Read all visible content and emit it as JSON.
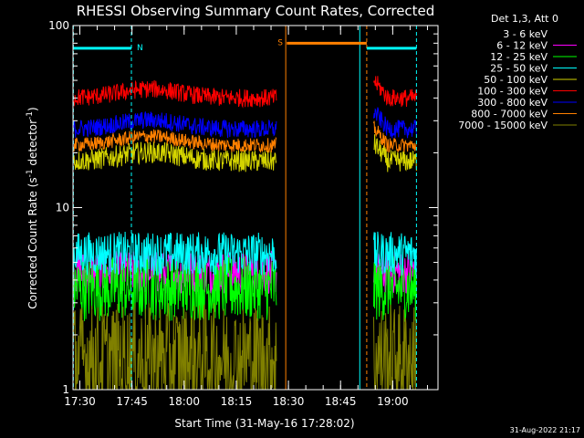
{
  "chart_data": {
    "type": "line",
    "title": "RHESSI Observing Summary Count Rates, Corrected",
    "xlabel": "Start Time (31-May-16 17:28:02)",
    "ylabel_prefix": "Corrected Count Rate (s",
    "ylabel_exp1": "-1",
    "ylabel_mid": " detector",
    "ylabel_exp2": "-1",
    "ylabel_suffix": ")",
    "x_ticks": [
      "17:30",
      "17:45",
      "18:00",
      "18:15",
      "18:30",
      "18:45",
      "19:00"
    ],
    "x_tick_minutes": [
      1.97,
      16.97,
      31.97,
      46.97,
      61.97,
      76.97,
      91.97
    ],
    "xlim_minutes": [
      0,
      105
    ],
    "y_scale": "log",
    "ylim": [
      1,
      100
    ],
    "y_ticks": [
      "1",
      "10",
      "100"
    ],
    "y_tick_values": [
      1,
      10,
      100
    ],
    "legend": {
      "header": "Det 1,3, Att 0",
      "placement": "right",
      "entries": [
        {
          "label": "3 - 6 keV",
          "color": "#000000"
        },
        {
          "label": "6 - 12 keV",
          "color": "#ff00ff"
        },
        {
          "label": "12 - 25 keV",
          "color": "#00ff00"
        },
        {
          "label": "25 - 50 keV",
          "color": "#00ffff"
        },
        {
          "label": "50 - 100 keV",
          "color": "#d4d400"
        },
        {
          "label": "100 - 300 keV",
          "color": "#ff0000"
        },
        {
          "label": "300 - 800 keV",
          "color": "#0000ff"
        },
        {
          "label": "800 - 7000 keV",
          "color": "#ff8000"
        },
        {
          "label": "7000 - 15000 keV",
          "color": "#808000"
        }
      ]
    },
    "flags": [
      {
        "label": "N",
        "color": "#00ffff",
        "start": 0,
        "end": 16.8,
        "level": 75
      },
      {
        "label": "S",
        "color": "#ff8000",
        "start": 61.5,
        "end": 84.5,
        "level": 80
      },
      {
        "label": "",
        "color": "#00ffff",
        "start": 84.5,
        "end": 98.8,
        "level": 75
      }
    ],
    "vlines": [
      {
        "x": 0.1,
        "color": "#00ffff",
        "style": "dashed"
      },
      {
        "x": 16.8,
        "color": "#00ffff",
        "style": "dashed"
      },
      {
        "x": 61.2,
        "color": "#ff8000",
        "style": "solid"
      },
      {
        "x": 82.5,
        "color": "#00ffff",
        "style": "solid"
      },
      {
        "x": 84.5,
        "color": "#ff8000",
        "style": "dashed"
      },
      {
        "x": 98.8,
        "color": "#00ffff",
        "style": "dashed"
      }
    ],
    "segments": [
      {
        "start": 0,
        "end": 58.5
      },
      {
        "start": 86.5,
        "end": 98.8
      }
    ],
    "series": [
      {
        "name": "3 - 6 keV",
        "color": "#000000",
        "base": 1.6,
        "noise": 0.3
      },
      {
        "name": "6 - 12 keV",
        "color": "#ff00ff",
        "base": 4.4,
        "noise": 0.12
      },
      {
        "name": "12 - 25 keV",
        "color": "#00ff00",
        "base": 3.6,
        "noise": 0.18
      },
      {
        "name": "25 - 50 keV",
        "color": "#00ffff",
        "base": 5.6,
        "noise": 0.12
      },
      {
        "name": "50 - 100 keV",
        "color": "#d4d400",
        "base": 18,
        "noise": 0.06
      },
      {
        "name": "100 - 300 keV",
        "color": "#ff0000",
        "base": 40,
        "noise": 0.05
      },
      {
        "name": "300 - 800 keV",
        "color": "#0000ff",
        "base": 27,
        "noise": 0.05
      },
      {
        "name": "800 - 7000 keV",
        "color": "#ff8000",
        "base": 22,
        "noise": 0.04
      },
      {
        "name": "7000 - 15000 keV",
        "color": "#808000",
        "base": 1.5,
        "noise": 0.3
      }
    ]
  },
  "footer": {
    "timestamp": "31-Aug-2022 21:17"
  }
}
